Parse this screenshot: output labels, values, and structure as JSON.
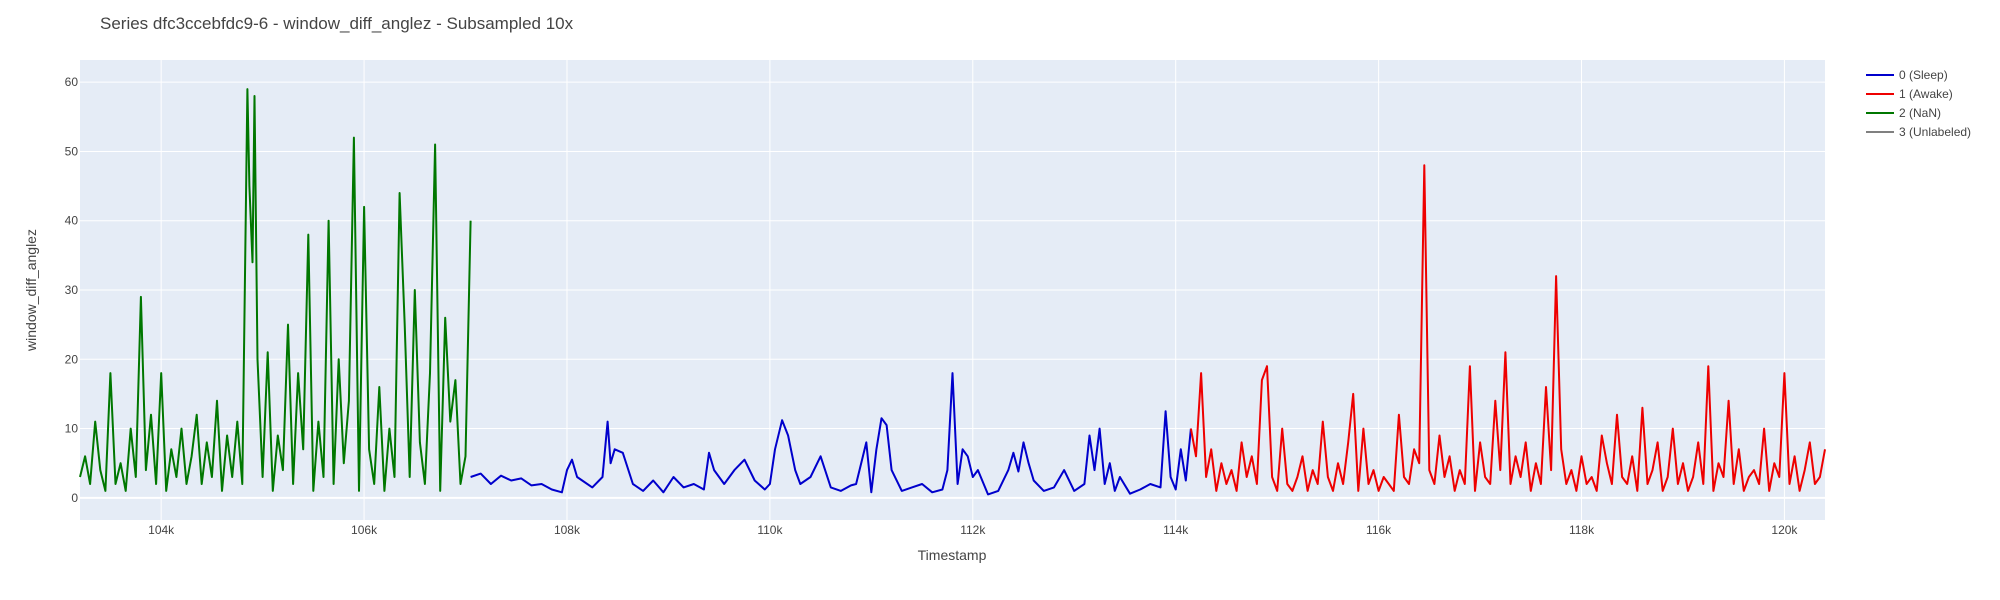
{
  "chart_data": {
    "type": "line",
    "title": "Series dfc3ccebfdc9-6 - window_diff_anglez - Subsampled 10x",
    "xlabel": "Timestamp",
    "ylabel": "window_diff_anglez",
    "xlim": [
      103200,
      120400
    ],
    "ylim": [
      -3.2,
      63.2
    ],
    "x_ticks": [
      104000,
      106000,
      108000,
      110000,
      112000,
      114000,
      116000,
      118000,
      120000
    ],
    "x_tick_labels": [
      "104k",
      "106k",
      "108k",
      "110k",
      "112k",
      "114k",
      "116k",
      "118k",
      "120k"
    ],
    "y_ticks": [
      0,
      10,
      20,
      30,
      40,
      50,
      60
    ],
    "y_tick_labels": [
      "0",
      "10",
      "20",
      "30",
      "40",
      "50",
      "60"
    ],
    "grid": true,
    "legend_position": "top-right",
    "plot_background": "#e5ecf6",
    "series": [
      {
        "name": "0 (Sleep)",
        "color": "#0000cc",
        "x": [
          107050,
          107150,
          107250,
          107350,
          107450,
          107550,
          107650,
          107750,
          107850,
          107950,
          108000,
          108050,
          108100,
          108150,
          108250,
          108350,
          108400,
          108430,
          108470,
          108550,
          108650,
          108750,
          108850,
          108950,
          109050,
          109150,
          109250,
          109350,
          109400,
          109450,
          109550,
          109650,
          109750,
          109850,
          109950,
          110000,
          110050,
          110120,
          110180,
          110250,
          110300,
          110400,
          110500,
          110600,
          110700,
          110800,
          110850,
          110900,
          110950,
          111000,
          111050,
          111100,
          111150,
          111200,
          111300,
          111400,
          111500,
          111600,
          111700,
          111750,
          111800,
          111850,
          111900,
          111950,
          112000,
          112050,
          112150,
          112250,
          112350,
          112400,
          112450,
          112500,
          112550,
          112600,
          112700,
          112800,
          112900,
          113000,
          113100,
          113150,
          113200,
          113250,
          113300,
          113350,
          113400,
          113450,
          113550,
          113650,
          113750,
          113850,
          113900,
          113950,
          114000,
          114050,
          114100,
          114150
        ],
        "y": [
          3,
          3.5,
          2,
          3.2,
          2.5,
          2.8,
          1.8,
          2,
          1.2,
          0.8,
          4,
          5.5,
          3,
          2.5,
          1.5,
          3,
          11,
          5,
          7,
          6.5,
          2,
          1,
          2.5,
          0.8,
          3,
          1.5,
          2,
          1.2,
          6.5,
          4,
          2,
          4,
          5.5,
          2.5,
          1.2,
          2,
          7,
          11.2,
          9,
          4,
          2,
          3,
          6,
          1.5,
          1,
          1.8,
          2,
          5,
          8,
          0.8,
          7,
          11.5,
          10.5,
          4,
          1,
          1.5,
          2,
          0.8,
          1.2,
          4,
          18,
          2,
          7,
          6,
          3,
          4,
          0.5,
          1,
          4,
          6.5,
          3.8,
          8,
          5,
          2.5,
          1,
          1.5,
          4,
          1,
          2,
          9,
          4,
          10,
          2,
          5,
          1,
          3,
          0.6,
          1.2,
          2,
          1.5,
          12.5,
          3,
          1.2,
          7,
          2.5,
          10
        ]
      },
      {
        "name": "1 (Awake)",
        "color": "#ee0000",
        "x": [
          114150,
          114200,
          114250,
          114300,
          114350,
          114400,
          114450,
          114500,
          114550,
          114600,
          114650,
          114700,
          114750,
          114800,
          114850,
          114900,
          114950,
          115000,
          115050,
          115100,
          115150,
          115200,
          115250,
          115300,
          115350,
          115400,
          115450,
          115500,
          115550,
          115600,
          115650,
          115700,
          115750,
          115800,
          115850,
          115900,
          115950,
          116000,
          116050,
          116100,
          116150,
          116200,
          116250,
          116300,
          116350,
          116400,
          116450,
          116500,
          116550,
          116600,
          116650,
          116700,
          116750,
          116800,
          116850,
          116900,
          116950,
          117000,
          117050,
          117100,
          117150,
          117200,
          117250,
          117300,
          117350,
          117400,
          117450,
          117500,
          117550,
          117600,
          117650,
          117700,
          117750,
          117800,
          117850,
          117900,
          117950,
          118000,
          118050,
          118100,
          118150,
          118200,
          118250,
          118300,
          118350,
          118400,
          118450,
          118500,
          118550,
          118600,
          118650,
          118700,
          118750,
          118800,
          118850,
          118900,
          118950,
          119000,
          119050,
          119100,
          119150,
          119200,
          119250,
          119300,
          119350,
          119400,
          119450,
          119500,
          119550,
          119600,
          119650,
          119700,
          119750,
          119800,
          119850,
          119900,
          119950,
          120000,
          120050,
          120100,
          120150,
          120200,
          120250,
          120300,
          120350,
          120400
        ],
        "y": [
          10,
          6,
          18,
          3,
          7,
          1,
          5,
          2,
          4,
          1,
          8,
          3,
          6,
          2,
          17,
          19,
          3,
          1,
          10,
          2,
          1,
          3,
          6,
          1,
          4,
          2,
          11,
          3,
          1,
          5,
          2,
          8,
          15,
          1,
          10,
          2,
          4,
          1,
          3,
          2,
          1,
          12,
          3,
          2,
          7,
          5,
          48,
          4,
          2,
          9,
          3,
          6,
          1,
          4,
          2,
          19,
          1,
          8,
          3,
          2,
          14,
          4,
          21,
          2,
          6,
          3,
          8,
          1,
          5,
          2,
          16,
          4,
          32,
          7,
          2,
          4,
          1,
          6,
          2,
          3,
          1,
          9,
          5,
          2,
          12,
          3,
          2,
          6,
          1,
          13,
          2,
          4,
          8,
          1,
          3,
          10,
          2,
          5,
          1,
          3,
          8,
          2,
          19,
          1,
          5,
          3,
          14,
          2,
          7,
          1,
          3,
          4,
          2,
          10,
          1,
          5,
          3,
          18,
          2,
          6,
          1,
          4,
          8,
          2,
          3,
          7
        ]
      },
      {
        "name": "2 (NaN)",
        "color": "#007700",
        "x": [
          103200,
          103250,
          103300,
          103350,
          103400,
          103450,
          103500,
          103550,
          103600,
          103650,
          103700,
          103750,
          103800,
          103850,
          103900,
          103950,
          104000,
          104050,
          104100,
          104150,
          104200,
          104250,
          104300,
          104350,
          104400,
          104450,
          104500,
          104550,
          104600,
          104650,
          104700,
          104750,
          104800,
          104850,
          104870,
          104900,
          104920,
          104950,
          105000,
          105050,
          105100,
          105150,
          105200,
          105250,
          105300,
          105350,
          105400,
          105450,
          105500,
          105550,
          105600,
          105650,
          105700,
          105750,
          105800,
          105850,
          105900,
          105950,
          106000,
          106050,
          106100,
          106150,
          106200,
          106250,
          106300,
          106350,
          106400,
          106450,
          106500,
          106550,
          106600,
          106650,
          106700,
          106750,
          106800,
          106850,
          106900,
          106950,
          107000,
          107050
        ],
        "y": [
          3,
          6,
          2,
          11,
          4,
          1,
          18,
          2,
          5,
          1,
          10,
          3,
          29,
          4,
          12,
          2,
          18,
          1,
          7,
          3,
          10,
          2,
          6,
          12,
          2,
          8,
          3,
          14,
          1,
          9,
          3,
          11,
          2,
          59,
          45,
          34,
          58,
          20,
          3,
          21,
          1,
          9,
          4,
          25,
          2,
          18,
          7,
          38,
          1,
          11,
          3,
          40,
          2,
          20,
          5,
          14,
          52,
          1,
          42,
          7,
          2,
          16,
          1,
          10,
          3,
          44,
          25,
          3,
          30,
          8,
          2,
          18,
          51,
          1,
          26,
          11,
          17,
          2,
          6,
          40
        ]
      },
      {
        "name": "3 (Unlabeled)",
        "color": "#808080",
        "x": [],
        "y": []
      }
    ]
  }
}
